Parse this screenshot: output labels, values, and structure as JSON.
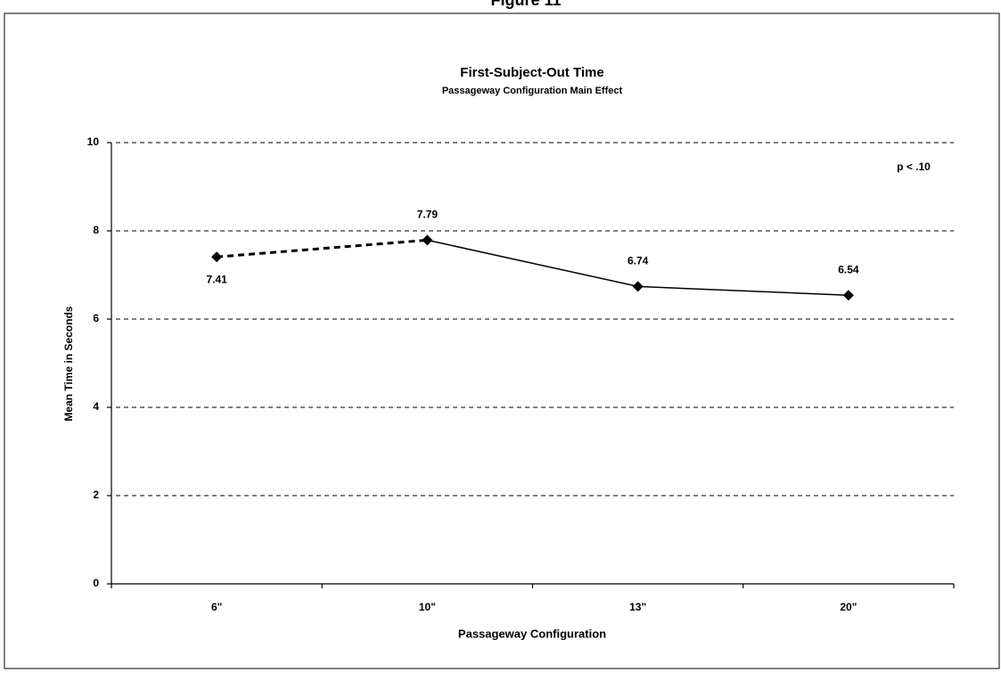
{
  "figure_label": "Figure 11",
  "chart_data": {
    "type": "line",
    "title": "First-Subject-Out Time",
    "subtitle": "Passageway Configuration Main Effect",
    "annotation": "p < .10",
    "x_label": "Passageway Configuration",
    "y_label": "Mean Time in Seconds",
    "categories": [
      "6\"",
      "10\"",
      "13\"",
      "20\""
    ],
    "values": [
      7.41,
      7.79,
      6.74,
      6.54
    ],
    "color": "#000000",
    "first_segment_dashed": true,
    "ylim": [
      0,
      10
    ],
    "yticks": [
      0,
      2,
      4,
      6,
      8,
      10
    ],
    "grid": true
  }
}
